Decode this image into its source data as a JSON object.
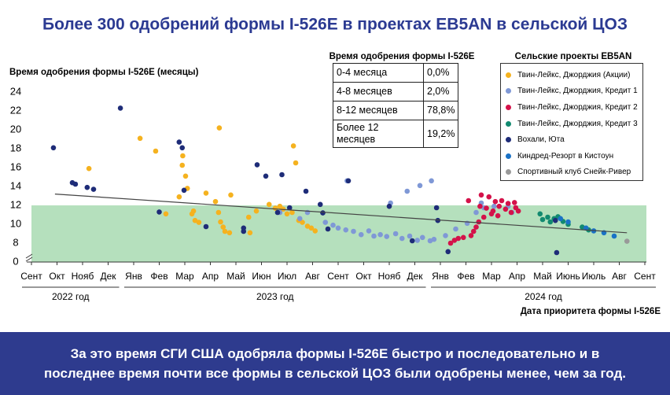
{
  "chart_data": {
    "type": "scatter",
    "title": "Более 300 одобрений формы I-526E в проектах EB5AN в сельской ЦОЗ",
    "y_label": "Время одобрения формы I-526E (месяцы)",
    "x_label": "Дата приоритета формы I-526E",
    "categories": [
      "Сент",
      "Окт",
      "Нояб",
      "Дек",
      "Янв",
      "Фев",
      "Мар",
      "Апр",
      "Май",
      "Июн",
      "Июл",
      "Авг",
      "Сент",
      "Окт",
      "Нояб",
      "Дек",
      "Янв",
      "Фев",
      "Мар",
      "Апр",
      "Май",
      "Июнь",
      "Июль",
      "Авг",
      "Сент"
    ],
    "year_groups": [
      {
        "label": "2022 год",
        "from": 0,
        "to": 3
      },
      {
        "label": "2023 год",
        "from": 4,
        "to": 15
      },
      {
        "label": "2024 год",
        "from": 16,
        "to": 24
      }
    ],
    "xlim": [
      0,
      24
    ],
    "ylim": [
      0,
      24
    ],
    "yticks": [
      0,
      8,
      10,
      12,
      14,
      16,
      18,
      20,
      22,
      24
    ],
    "axis_break": true,
    "shaded_range": [
      0,
      12
    ],
    "shaded_color": "#b5e0bd",
    "trendline": {
      "x": [
        0.92,
        23.3
      ],
      "values": [
        13.2,
        9.1
      ],
      "color": "#444"
    },
    "series": [
      {
        "name": "Твин-Лейкс, Джорджия (Акции)",
        "color": "#f5b21f",
        "x": [
          2.25,
          4.25,
          4.86,
          5.26,
          5.78,
          6.34,
          5.9,
          5.92,
          6.03,
          6.1,
          6.28,
          6.4,
          6.55,
          6.83,
          7.2,
          7.35,
          7.32,
          7.4,
          7.5,
          7.57,
          7.75,
          7.8,
          8.5,
          8.55,
          8.8,
          9.3,
          9.54,
          9.72,
          9.85,
          10.0,
          10.25,
          10.34,
          10.2,
          10.46,
          10.6,
          10.8,
          10.95,
          11.1
        ],
        "values": [
          15.9,
          19.1,
          17.75,
          11.1,
          12.9,
          11.4,
          16.25,
          17.25,
          15.1,
          13.8,
          11.1,
          10.4,
          10.2,
          13.3,
          12.4,
          20.2,
          11.25,
          10.25,
          9.7,
          9.25,
          9.1,
          13.1,
          10.75,
          9.1,
          11.4,
          12.1,
          11.7,
          11.9,
          11.6,
          11.1,
          18.3,
          16.5,
          11.25,
          10.4,
          10.2,
          9.8,
          9.6,
          9.3
        ]
      },
      {
        "name": "Твин-Лейкс, Джорджия, Кредит 1",
        "color": "#7f98d6",
        "x": [
          9.72,
          10.5,
          10.8,
          11.5,
          11.8,
          12.0,
          12.3,
          12.35,
          12.6,
          12.9,
          13.2,
          13.4,
          13.65,
          13.9,
          14.05,
          14.25,
          14.5,
          14.7,
          14.8,
          15.1,
          15.2,
          15.3,
          15.6,
          15.65,
          15.75,
          16.2,
          16.6,
          17.05,
          17.4,
          17.6,
          17.7,
          18.1,
          18.65,
          18.8
        ],
        "values": [
          11.25,
          10.6,
          11.25,
          10.2,
          9.9,
          9.6,
          9.4,
          14.6,
          9.25,
          8.9,
          9.3,
          8.75,
          8.9,
          8.7,
          12.25,
          9.0,
          8.5,
          13.5,
          8.75,
          8.3,
          14.1,
          8.6,
          8.25,
          14.6,
          8.4,
          8.8,
          9.5,
          10.1,
          11.25,
          12.25,
          11.75,
          11.9,
          11.9,
          11.25
        ]
      },
      {
        "name": "Твин-Лейкс, Джорджия, Кредит 2",
        "color": "#d4124a",
        "x": [
          16.4,
          16.55,
          16.7,
          16.9,
          17.1,
          17.2,
          17.3,
          17.4,
          17.5,
          17.55,
          17.6,
          17.7,
          17.8,
          17.9,
          18.0,
          18.06,
          18.15,
          18.25,
          18.3,
          18.4,
          18.55,
          18.65,
          18.77,
          18.9,
          18.95,
          19.05
        ],
        "values": [
          8.0,
          8.3,
          8.5,
          8.6,
          12.5,
          8.8,
          9.25,
          9.7,
          10.25,
          11.9,
          13.1,
          10.75,
          11.7,
          12.9,
          11.1,
          11.4,
          12.4,
          10.9,
          11.9,
          12.5,
          11.6,
          12.2,
          11.25,
          12.3,
          11.75,
          11.4
        ]
      },
      {
        "name": "Твин-Лейкс, Джорджия, Кредит 3",
        "color": "#128a70",
        "x": [
          19.9,
          20.0,
          20.2,
          20.3,
          20.45,
          20.6,
          20.8,
          21.0,
          21.55,
          21.8
        ],
        "values": [
          11.1,
          10.5,
          10.75,
          10.25,
          10.6,
          10.8,
          10.3,
          10.0,
          9.7,
          9.4
        ]
      },
      {
        "name": "Вохали, Юта",
        "color": "#1e2c78",
        "x": [
          0.86,
          1.6,
          1.72,
          2.18,
          2.43,
          3.48,
          5.0,
          5.78,
          5.9,
          5.97,
          6.83,
          8.3,
          8.3,
          8.83,
          9.17,
          9.63,
          9.8,
          10.1,
          10.74,
          11.3,
          11.4,
          11.6,
          12.4,
          14.0,
          14.9,
          15.85,
          16.3,
          15.9,
          20.55,
          20.5
        ],
        "values": [
          18.1,
          14.4,
          14.25,
          13.9,
          13.7,
          22.3,
          11.3,
          18.7,
          18.1,
          13.6,
          9.75,
          9.6,
          9.25,
          16.3,
          15.1,
          11.25,
          15.25,
          11.75,
          13.5,
          12.1,
          11.2,
          9.5,
          14.6,
          11.9,
          8.25,
          11.75,
          7.1,
          10.4,
          7.0,
          10.4
        ]
      },
      {
        "name": "Киндред-Резорт в Кистоун",
        "color": "#1a72c6",
        "x": [
          20.7,
          21.0,
          21.7,
          22.0,
          22.4,
          22.8
        ],
        "values": [
          10.6,
          10.25,
          9.6,
          9.3,
          9.1,
          8.75
        ]
      },
      {
        "name": "Спортивный клуб Снейк-Ривер",
        "color": "#999999",
        "x": [
          23.3
        ],
        "values": [
          8.2
        ]
      }
    ],
    "legend_title": "Сельские проекты EB5AN",
    "table": {
      "title": "Время одобрения формы I-526E",
      "rows": [
        [
          "0-4 месяца",
          "0,0%"
        ],
        [
          "4-8 месяцев",
          "2,0%"
        ],
        [
          "8-12 месяцев",
          "78,8%"
        ],
        [
          "Более 12 месяцев",
          "19,2%"
        ]
      ]
    },
    "footer": [
      "За это время СГИ США одобряла формы I-526E быстро и последовательно и в",
      "последнее время почти все формы в сельской ЦОЗ были одобрены менее, чем за год."
    ]
  }
}
